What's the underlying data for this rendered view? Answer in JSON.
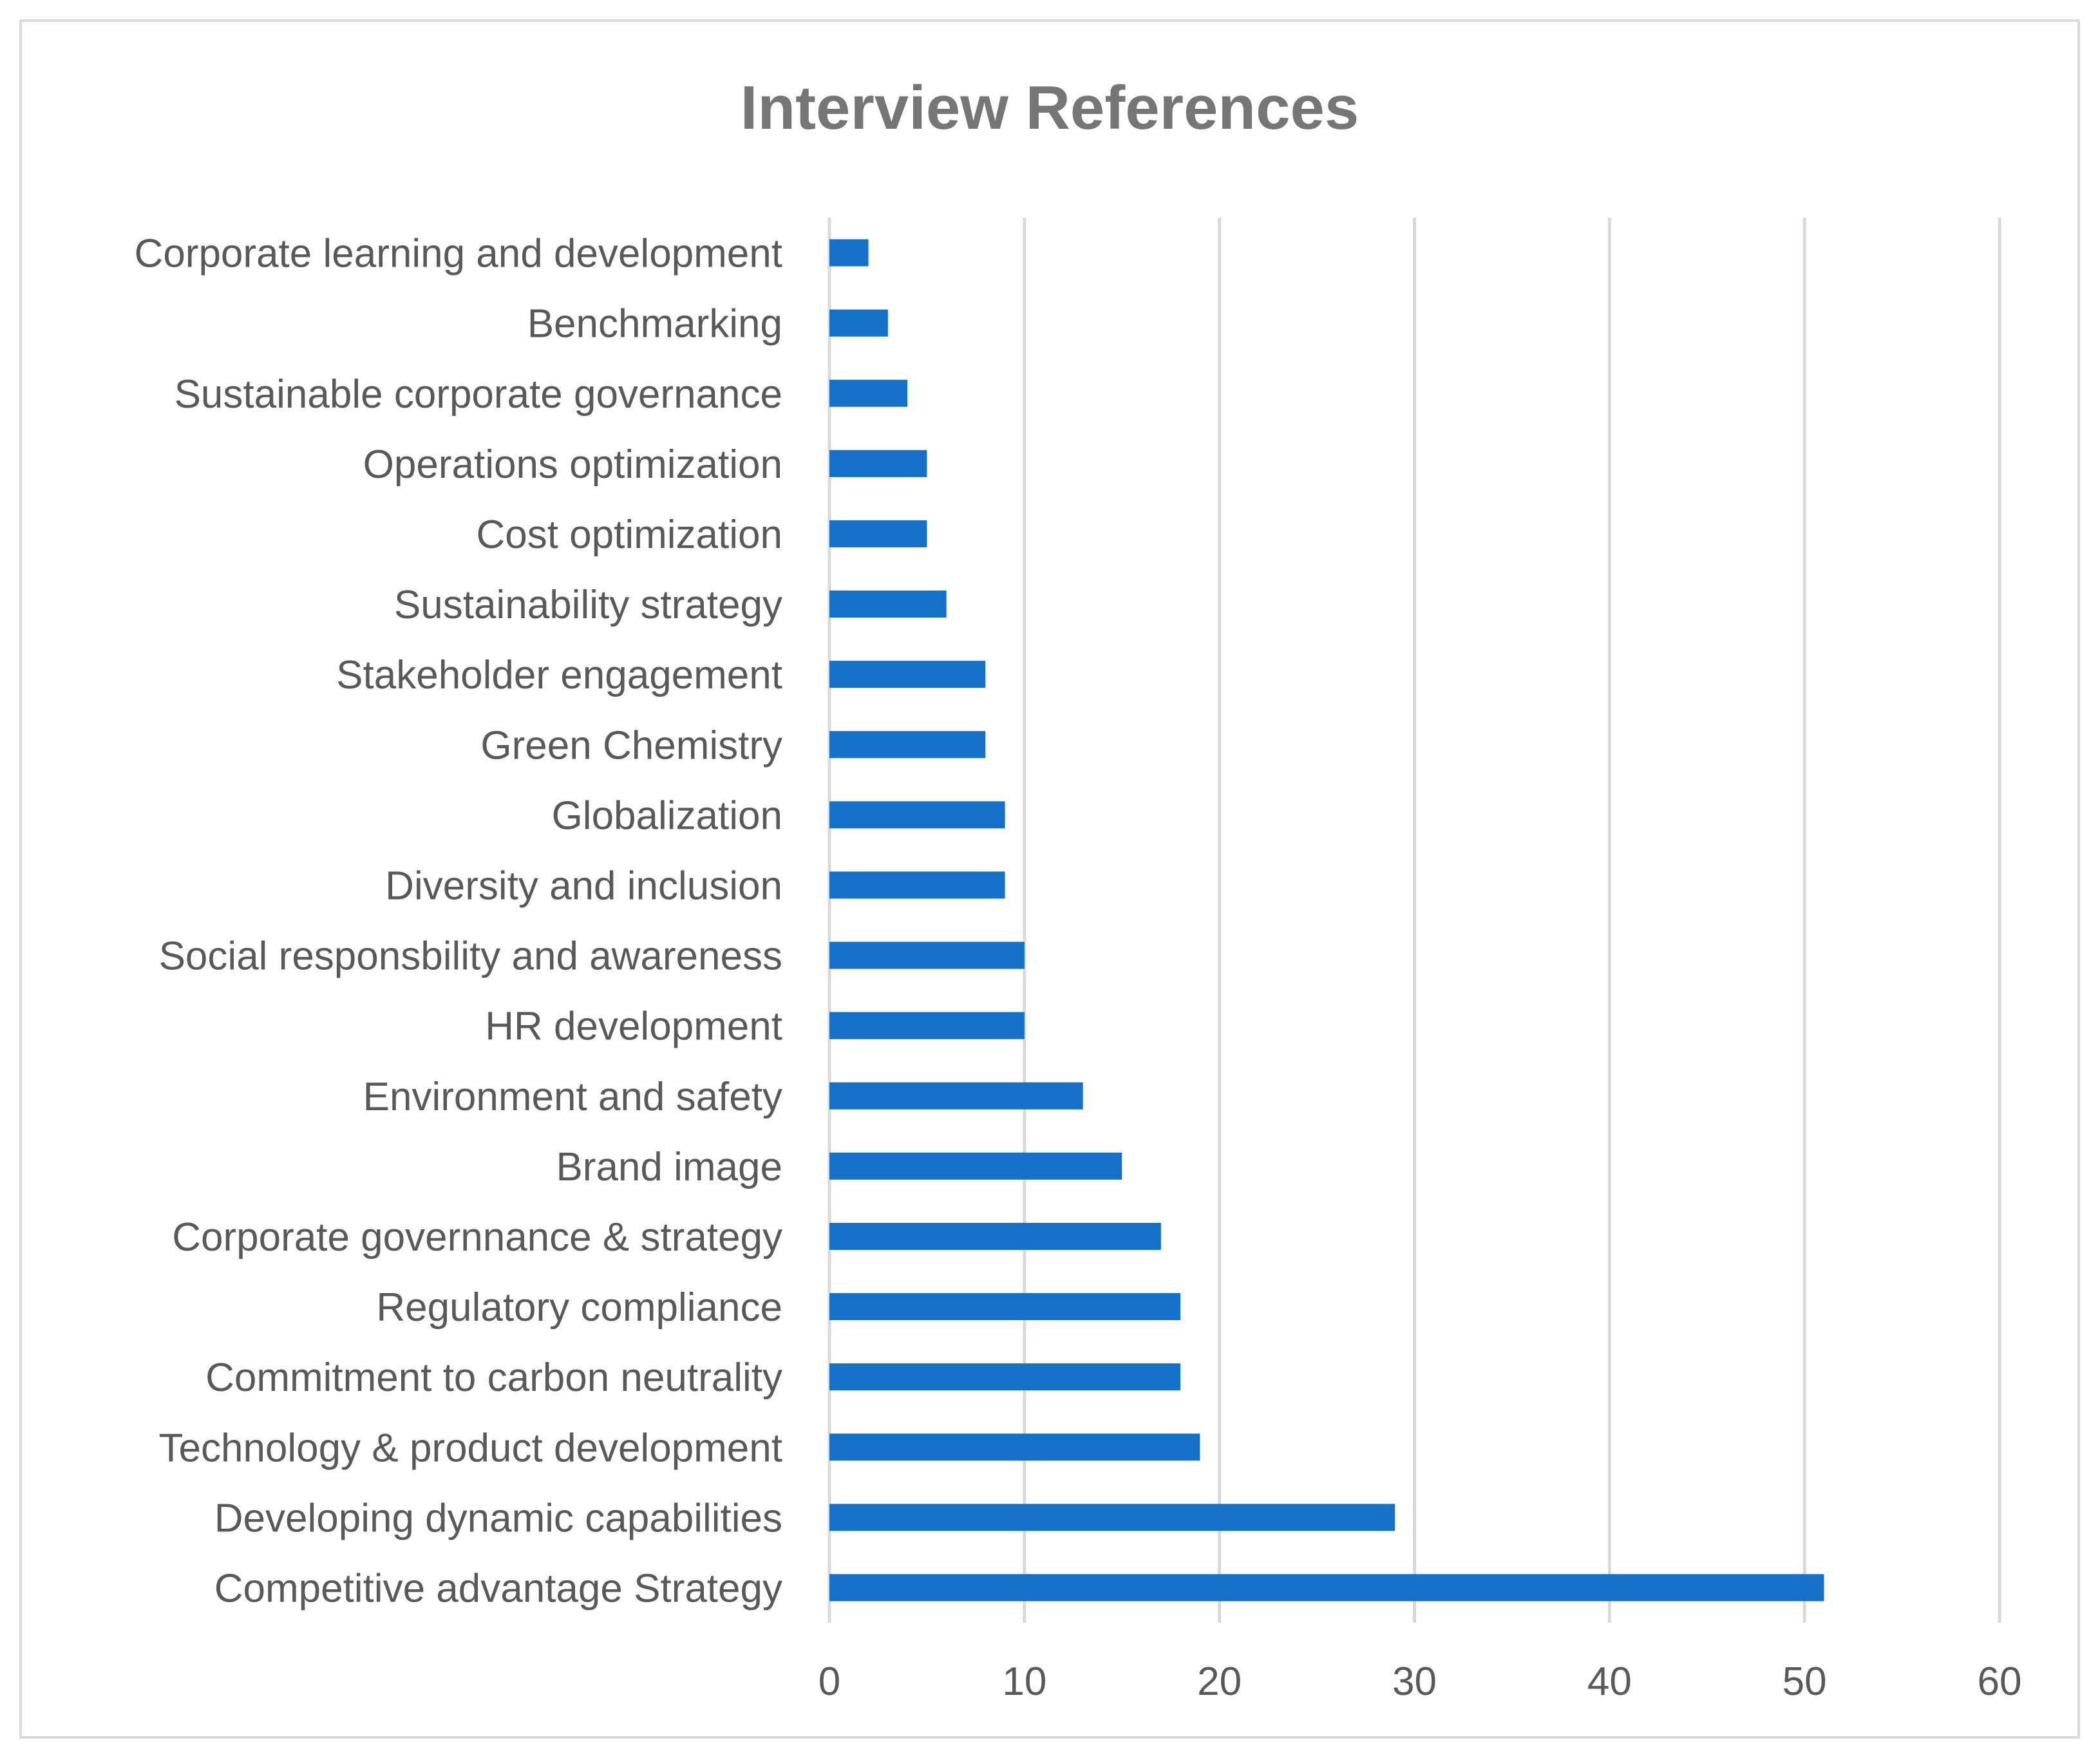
{
  "chart_data": {
    "type": "bar",
    "orientation": "horizontal",
    "title": "Interview References",
    "xlabel": "",
    "ylabel": "",
    "categories": [
      "Corporate learning and development",
      "Benchmarking",
      "Sustainable corporate governance",
      "Operations optimization",
      "Cost optimization",
      "Sustainability strategy",
      "Stakeholder engagement",
      "Green Chemistry",
      "Globalization",
      "Diversity and inclusion",
      "Social responsbility and awareness",
      "HR development",
      "Environment and safety",
      "Brand image",
      "Corporate governnance & strategy",
      "Regulatory compliance",
      "Commitment to carbon neutrality",
      "Technology & product development",
      "Developing dynamic capabilities",
      "Competitive advantage Strategy"
    ],
    "values": [
      2,
      3,
      4,
      5,
      5,
      6,
      8,
      8,
      9,
      9,
      10,
      10,
      13,
      15,
      17,
      18,
      18,
      19,
      29,
      51
    ],
    "xlim": [
      0,
      60
    ],
    "xticks": [
      "0",
      "10",
      "20",
      "30",
      "40",
      "50",
      "60"
    ],
    "grid": "vertical",
    "legend": "none",
    "colors": {
      "bar": "#1570c8",
      "grid": "#d9d9d9",
      "text": "#595959",
      "title": "#767676"
    }
  }
}
